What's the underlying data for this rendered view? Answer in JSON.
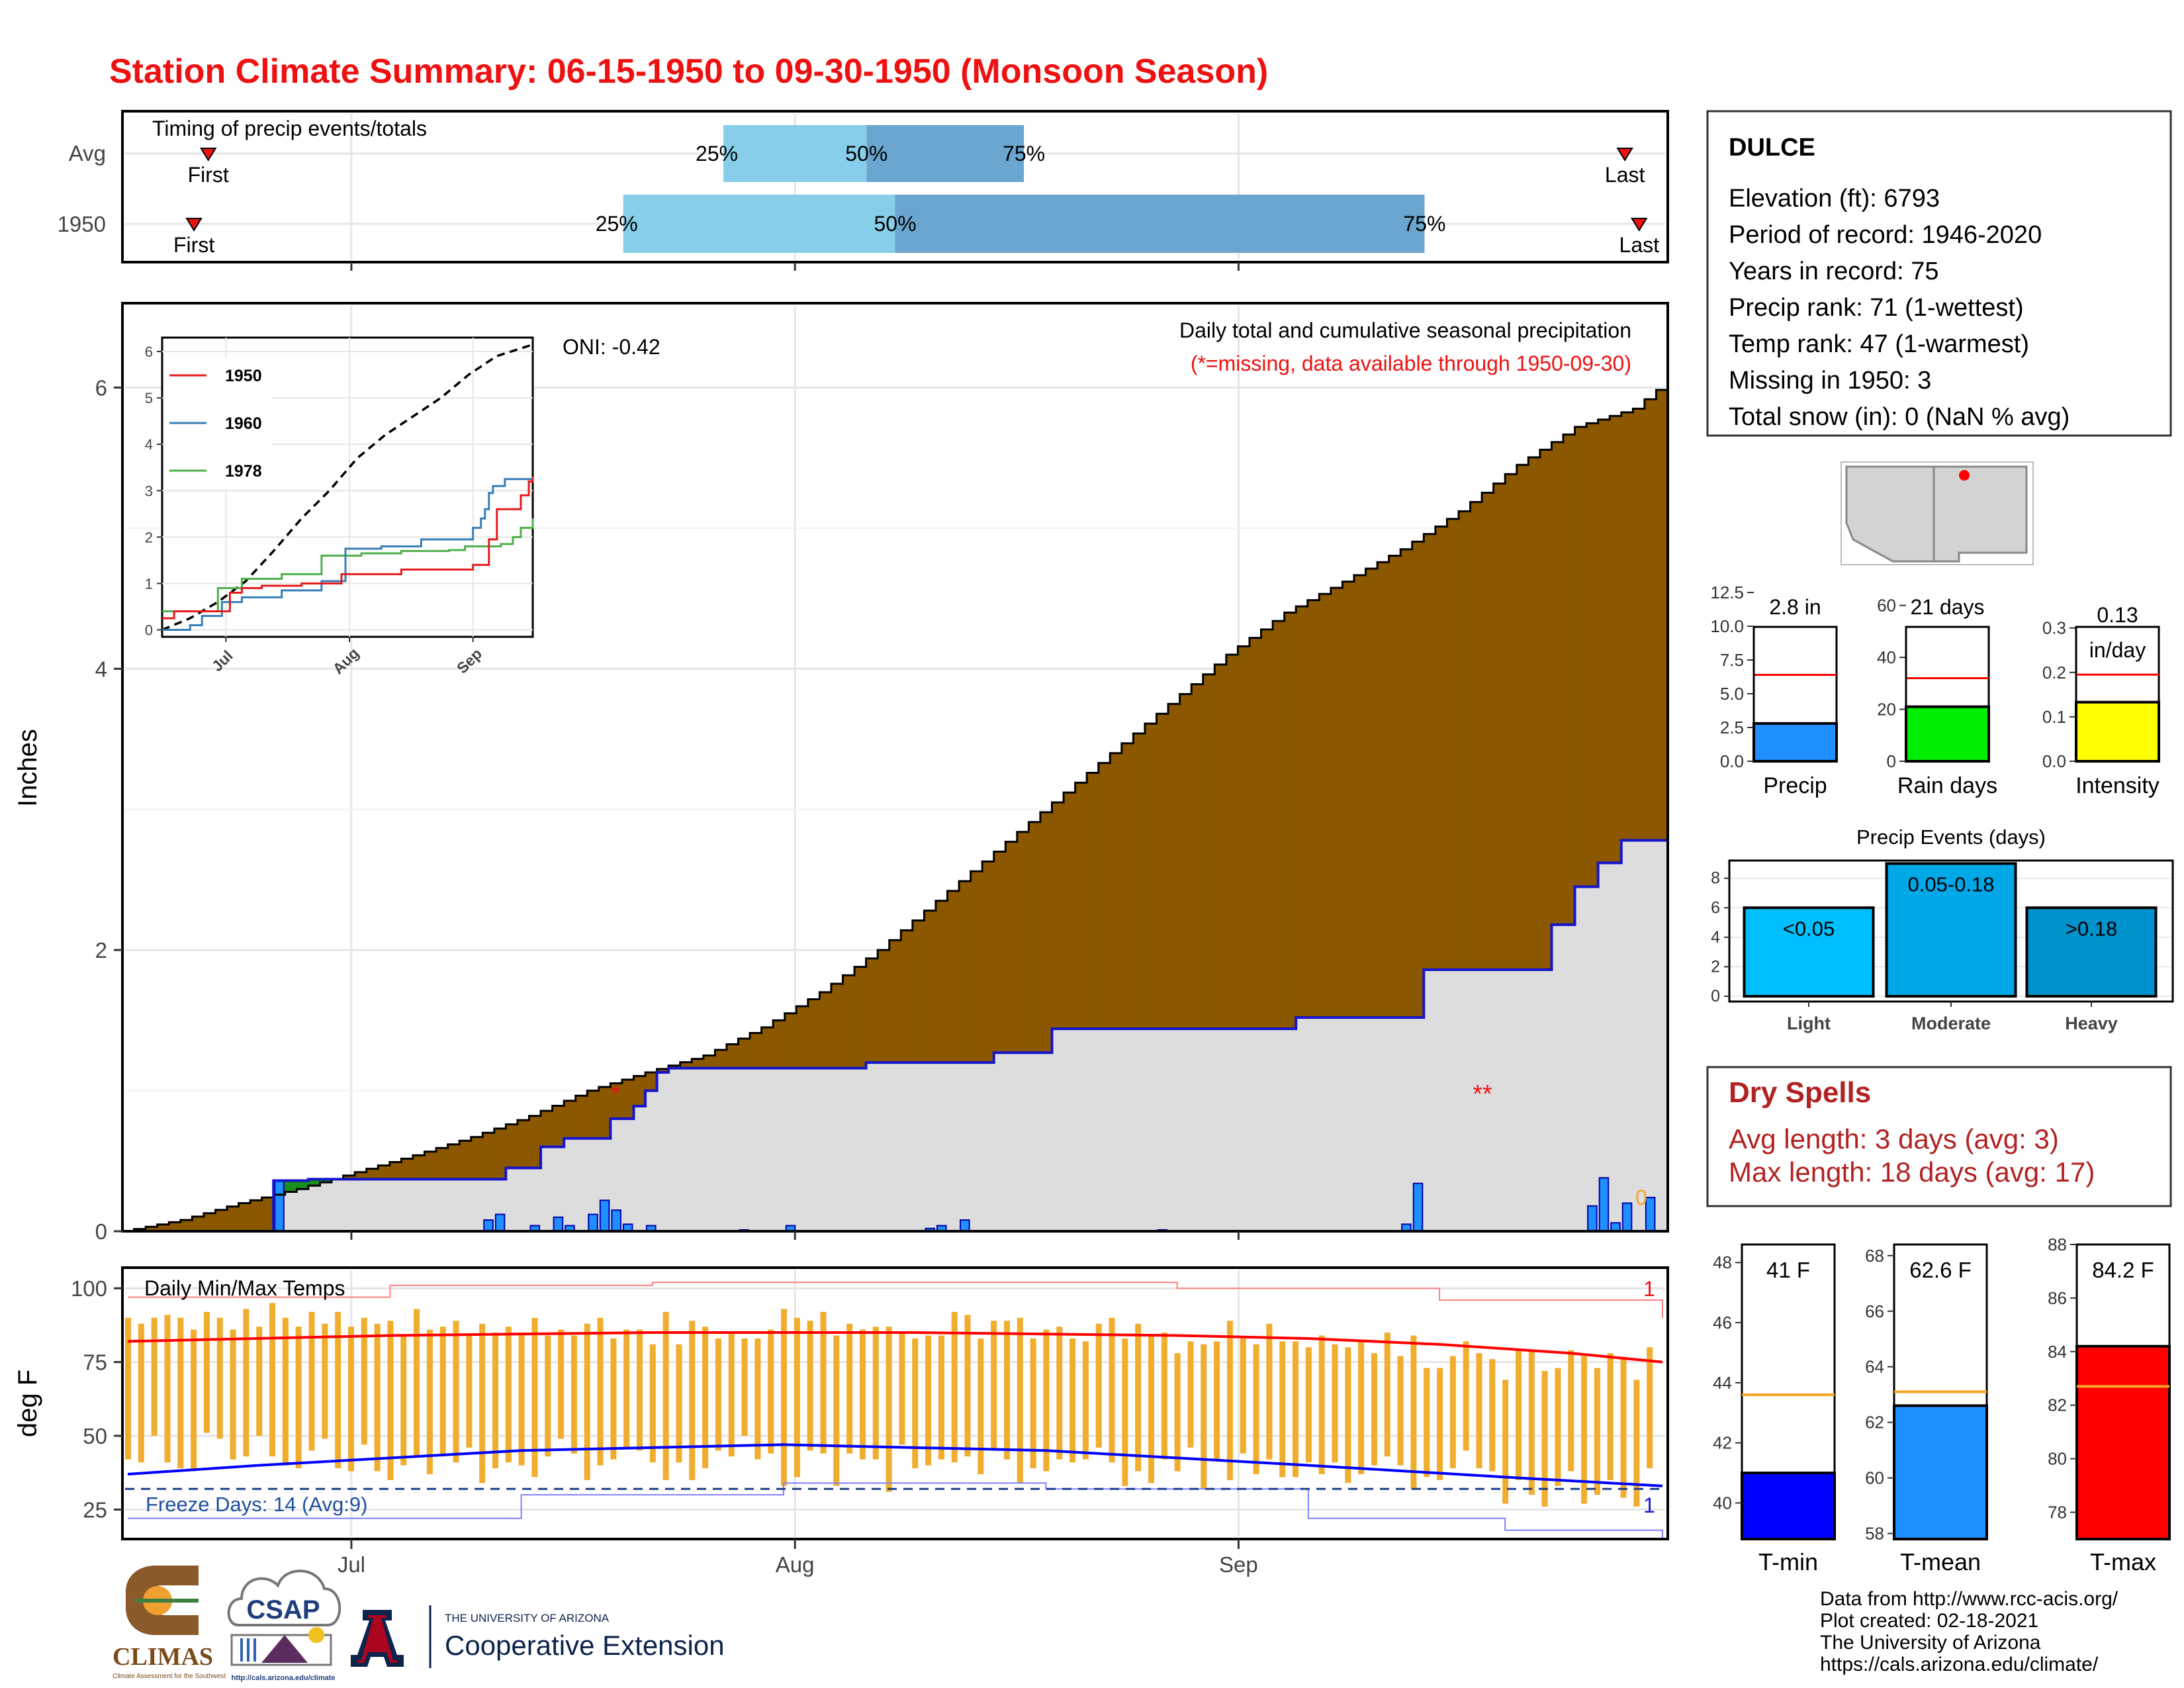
{
  "title": "Station Climate Summary: 06-15-1950 to 09-30-1950 (Monsoon Season)",
  "colors": {
    "title_red": "#ee1111",
    "brown": "#8b5800",
    "green": "#1b8f1b",
    "blue_line": "#1414cc",
    "precip_bar": "#1f8fff",
    "grey_fill": "#dddddd",
    "orange": "#f0ad2e",
    "tmax": "#ff0000",
    "tmin": "#0000ff",
    "light_blue": "#87ceeb",
    "mid_blue": "#6aa6cf",
    "box_red": "#b22222"
  },
  "timing_panel": {
    "title": "Timing of precip events/totals",
    "row_labels": [
      "Avg",
      "1950"
    ],
    "avg": {
      "first": "06-21",
      "p25": "07-27",
      "p50": "08-06",
      "p75": "08-17",
      "last": "09-28"
    },
    "yr": {
      "first": "06-20",
      "p25": "07-20",
      "p50": "08-08",
      "p75": "09-14",
      "last": "09-29"
    },
    "first_label": "First",
    "last_label": "Last",
    "p25_label": "25%",
    "p50_label": "50%",
    "p75_label": "75%"
  },
  "precip_panel": {
    "ylabel": "Inches",
    "yticks": [
      "0",
      "2",
      "4",
      "6"
    ],
    "oni": "ONI: -0.42",
    "label_line1": "Daily total and cumulative seasonal precipitation",
    "label_line2": "(*=missing, data available through 1950-09-30)",
    "missing_marks": [
      "*",
      "**"
    ],
    "zero_label": "0"
  },
  "inset": {
    "yticks": [
      "0",
      "1",
      "2",
      "3",
      "4",
      "5",
      "6"
    ],
    "xticks": [
      "Jul",
      "Aug",
      "Sep"
    ],
    "legend": [
      {
        "name": "1950",
        "color": "#e41a1c"
      },
      {
        "name": "1960",
        "color": "#377eb8"
      },
      {
        "name": "1978",
        "color": "#4daf4a"
      }
    ]
  },
  "temp_panel": {
    "ylabel": "deg F",
    "title": "Daily Min/Max Temps",
    "yticks": [
      "25",
      "50",
      "75",
      "100"
    ],
    "freeze_text": "Freeze Days: 14 (Avg:9)",
    "record_high_count": "1",
    "record_low_count": "1"
  },
  "x_axis": {
    "ticks": [
      "Jul",
      "Aug",
      "Sep"
    ]
  },
  "station_box": {
    "name": "DULCE",
    "lines": [
      "Elevation (ft): 6793",
      "Period of record: 1946-2020",
      "Years in record: 75",
      "Precip rank: 71 (1-wettest)",
      "Temp rank: 47 (1-warmest)",
      "Missing in 1950: 3",
      "Total snow (in): 0 (NaN % avg)"
    ]
  },
  "mini_bars": [
    {
      "label": "Precip",
      "value_text": "2.8 in",
      "value": 2.8,
      "avg": 6.4,
      "ymax": 12.5,
      "yticks": [
        "0.0",
        "2.5",
        "5.0",
        "7.5",
        "10.0",
        "12.5"
      ],
      "tick_values": [
        0,
        2.5,
        5,
        7.5,
        10,
        12.5
      ],
      "color": "#1f8fff"
    },
    {
      "label": "Rain days",
      "value_text": "21 days",
      "value": 21,
      "avg": 32,
      "ymax": 65,
      "yticks": [
        "0",
        "20",
        "40",
        "60"
      ],
      "tick_values": [
        0,
        20,
        40,
        60
      ],
      "color": "#00ee00"
    },
    {
      "label": "Intensity",
      "value_text": "0.13",
      "value_text2": "in/day",
      "value": 0.133,
      "avg": 0.195,
      "ymax": 0.38,
      "yticks": [
        "0.0",
        "0.1",
        "0.2",
        "0.3"
      ],
      "tick_values": [
        0,
        0.1,
        0.2,
        0.3
      ],
      "color": "#ffff00"
    }
  ],
  "events": {
    "title": "Precip Events (days)",
    "yticks": [
      "0",
      "2",
      "4",
      "6",
      "8"
    ],
    "bars": [
      {
        "category": "Light",
        "label": "<0.05",
        "value": 6,
        "color": "#00bfff"
      },
      {
        "category": "Moderate",
        "label": "0.05-0.18",
        "value": 9,
        "color": "#00a8e8"
      },
      {
        "category": "Heavy",
        "label": ">0.18",
        "value": 6,
        "color": "#0092cc"
      }
    ]
  },
  "dry_spells": {
    "title": "Dry Spells",
    "avg_line": "Avg length: 3 days (avg: 3)",
    "max_line": "Max length: 18 days (avg: 17)"
  },
  "temp_bars": [
    {
      "label": "T-min",
      "value_text": "41 F",
      "value": 41,
      "avg": 43.6,
      "ymin": 38.8,
      "ymax": 48.6,
      "yticks": [
        "40",
        "42",
        "44",
        "46",
        "48"
      ],
      "tick_values": [
        40,
        42,
        44,
        46,
        48
      ],
      "color": "#0000ff"
    },
    {
      "label": "T-mean",
      "value_text": "62.6 F",
      "value": 62.6,
      "avg": 63.1,
      "ymin": 57.8,
      "ymax": 68.4,
      "yticks": [
        "58",
        "60",
        "62",
        "64",
        "66",
        "68"
      ],
      "tick_values": [
        58,
        60,
        62,
        64,
        66,
        68
      ],
      "color": "#1e90ff"
    },
    {
      "label": "T-max",
      "value_text": "84.2 F",
      "value": 84.2,
      "avg": 82.7,
      "ymin": 77,
      "ymax": 88,
      "yticks": [
        "78",
        "80",
        "82",
        "84",
        "86",
        "88"
      ],
      "tick_values": [
        78,
        80,
        82,
        84,
        86,
        88
      ],
      "color": "#ff0000"
    }
  ],
  "footer": {
    "lines": [
      "Data from http://www.rcc-acis.org/",
      "Plot created: 02-18-2021",
      "The University of Arizona",
      "https://cals.arizona.edu/climate/"
    ],
    "climas": "CLIMAS",
    "climas_sub": "Climate Assessment for the Southwest",
    "csap": "CSAP",
    "csap_url": "http://cals.arizona.edu/climate",
    "ua_small": "THE UNIVERSITY OF ARIZONA",
    "ua_big": "Cooperative Extension"
  },
  "chart_data": {
    "type": "area",
    "start_date": "1950-06-15",
    "end_date": "1950-09-30",
    "cumulative_1950": [
      [
        0,
        0
      ],
      [
        13,
        0.36
      ],
      [
        16,
        0.37
      ],
      [
        31,
        0.37
      ],
      [
        33,
        0.45
      ],
      [
        36,
        0.6
      ],
      [
        38,
        0.66
      ],
      [
        42,
        0.8
      ],
      [
        44,
        0.89
      ],
      [
        45,
        1.0
      ],
      [
        46,
        1.13
      ],
      [
        47,
        1.16
      ],
      [
        49,
        1.16
      ],
      [
        64,
        1.2
      ],
      [
        75,
        1.27
      ],
      [
        76,
        1.27
      ],
      [
        80,
        1.44
      ],
      [
        81,
        1.44
      ],
      [
        100,
        1.44
      ],
      [
        101,
        1.52
      ],
      [
        102,
        1.52
      ],
      [
        111,
        1.52
      ],
      [
        112,
        1.86
      ],
      [
        113,
        1.86
      ],
      [
        122,
        1.86
      ],
      [
        123,
        2.18
      ],
      [
        124,
        2.18
      ],
      [
        125,
        2.45
      ],
      [
        126,
        2.45
      ],
      [
        127,
        2.62
      ],
      [
        128,
        2.62
      ],
      [
        129,
        2.78
      ],
      [
        130,
        2.78
      ],
      [
        133,
        2.8
      ]
    ],
    "cumulative_avg": [
      [
        0,
        0
      ],
      [
        5,
        0.08
      ],
      [
        10,
        0.2
      ],
      [
        15,
        0.3
      ],
      [
        20,
        0.42
      ],
      [
        25,
        0.54
      ],
      [
        30,
        0.67
      ],
      [
        35,
        0.82
      ],
      [
        40,
        1.0
      ],
      [
        45,
        1.13
      ],
      [
        50,
        1.25
      ],
      [
        55,
        1.45
      ],
      [
        60,
        1.7
      ],
      [
        65,
        2.0
      ],
      [
        70,
        2.35
      ],
      [
        75,
        2.7
      ],
      [
        80,
        3.05
      ],
      [
        85,
        3.4
      ],
      [
        90,
        3.75
      ],
      [
        95,
        4.1
      ],
      [
        100,
        4.4
      ],
      [
        105,
        4.62
      ],
      [
        110,
        4.85
      ],
      [
        115,
        5.12
      ],
      [
        120,
        5.45
      ],
      [
        125,
        5.72
      ],
      [
        130,
        5.85
      ],
      [
        133,
        6.05
      ]
    ],
    "daily_precip_1950": [
      [
        13,
        0.36
      ],
      [
        31,
        0.08
      ],
      [
        32,
        0.12
      ],
      [
        35,
        0.04
      ],
      [
        37,
        0.1
      ],
      [
        38,
        0.04
      ],
      [
        40,
        0.12
      ],
      [
        41,
        0.22
      ],
      [
        42,
        0.15
      ],
      [
        43,
        0.05
      ],
      [
        45,
        0.04
      ],
      [
        53,
        0.01
      ],
      [
        57,
        0.04
      ],
      [
        69,
        0.02
      ],
      [
        70,
        0.04
      ],
      [
        72,
        0.08
      ],
      [
        89,
        0.01
      ],
      [
        110,
        0.05
      ],
      [
        111,
        0.34
      ],
      [
        126,
        0.18
      ],
      [
        127,
        0.38
      ],
      [
        128,
        0.06
      ],
      [
        129,
        0.2
      ],
      [
        131,
        0.24
      ]
    ],
    "inset_avg_cumulative": [
      [
        0,
        0
      ],
      [
        10,
        0.25
      ],
      [
        20,
        0.6
      ],
      [
        30,
        1.05
      ],
      [
        40,
        1.7
      ],
      [
        50,
        2.4
      ],
      [
        60,
        3.0
      ],
      [
        70,
        3.7
      ],
      [
        80,
        4.2
      ],
      [
        90,
        4.6
      ],
      [
        100,
        5.0
      ],
      [
        110,
        5.5
      ],
      [
        120,
        5.9
      ],
      [
        133,
        6.15
      ]
    ],
    "inset_1950": [
      [
        0,
        0.25
      ],
      [
        3,
        0.4
      ],
      [
        10,
        0.4
      ],
      [
        17,
        0.8
      ],
      [
        20,
        0.9
      ],
      [
        25,
        0.95
      ],
      [
        35,
        1.0
      ],
      [
        45,
        1.2
      ],
      [
        60,
        1.3
      ],
      [
        78,
        1.4
      ],
      [
        82,
        1.95
      ],
      [
        84,
        2.6
      ],
      [
        88,
        2.6
      ],
      [
        90,
        2.9
      ],
      [
        92,
        3.2
      ],
      [
        93,
        3.3
      ]
    ],
    "inset_1960": [
      [
        0,
        0
      ],
      [
        7,
        0.1
      ],
      [
        10,
        0.3
      ],
      [
        15,
        0.6
      ],
      [
        20,
        0.7
      ],
      [
        30,
        0.85
      ],
      [
        40,
        1.05
      ],
      [
        46,
        1.75
      ],
      [
        55,
        1.8
      ],
      [
        65,
        1.95
      ],
      [
        78,
        2.2
      ],
      [
        80,
        2.4
      ],
      [
        81,
        2.6
      ],
      [
        82,
        2.95
      ],
      [
        83,
        3.1
      ],
      [
        86,
        3.25
      ],
      [
        93,
        3.3
      ]
    ],
    "inset_1978": [
      [
        0,
        0.4
      ],
      [
        8,
        0.4
      ],
      [
        14,
        0.9
      ],
      [
        20,
        1.1
      ],
      [
        30,
        1.2
      ],
      [
        40,
        1.6
      ],
      [
        50,
        1.65
      ],
      [
        60,
        1.7
      ],
      [
        72,
        1.72
      ],
      [
        76,
        1.8
      ],
      [
        85,
        1.85
      ],
      [
        88,
        2.0
      ],
      [
        90,
        2.2
      ],
      [
        93,
        2.4
      ]
    ],
    "temps_1950": {
      "tmax": [
        90,
        88,
        90,
        91,
        90,
        86,
        92,
        90,
        86,
        93,
        87,
        95,
        90,
        87,
        92,
        88,
        92,
        87,
        90,
        88,
        89,
        84,
        93,
        86,
        87,
        89,
        84,
        88,
        85,
        87,
        85,
        90,
        84,
        86,
        84,
        88,
        90,
        83,
        86,
        86,
        81,
        92,
        81,
        89,
        87,
        83,
        85,
        83,
        83,
        86,
        93,
        90,
        89,
        92,
        84,
        88,
        86,
        87,
        87,
        85,
        83,
        84,
        84,
        92,
        91,
        83,
        89,
        89,
        90,
        83,
        86,
        87,
        83,
        82,
        88,
        90,
        83,
        88,
        84,
        85,
        78,
        82,
        81,
        82,
        89,
        83,
        81,
        88,
        82,
        82,
        80,
        84,
        81,
        80,
        82,
        78,
        85,
        77,
        84,
        73,
        73,
        77,
        82,
        78,
        76,
        69,
        79,
        79,
        72,
        73,
        79,
        77,
        73,
        78,
        76,
        69,
        80
      ],
      "tmin": [
        42,
        41,
        50,
        41,
        39,
        38,
        51,
        49,
        42,
        43,
        50,
        43,
        40,
        39,
        45,
        49,
        39,
        38,
        47,
        38,
        35,
        40,
        43,
        37,
        43,
        41,
        46,
        34,
        39,
        41,
        40,
        36,
        43,
        49,
        44,
        35,
        40,
        42,
        46,
        45,
        41,
        35,
        41,
        35,
        39,
        45,
        43,
        50,
        42,
        44,
        33,
        36,
        45,
        44,
        33,
        44,
        42,
        42,
        31,
        47,
        39,
        40,
        42,
        41,
        43,
        37,
        45,
        42,
        34,
        39,
        38,
        42,
        41,
        42,
        46,
        41,
        33,
        38,
        34,
        42,
        38,
        46,
        32,
        42,
        35,
        44,
        37,
        42,
        36,
        36,
        41,
        37,
        41,
        34,
        37,
        40,
        43,
        40,
        32,
        36,
        35,
        39,
        45,
        39,
        38,
        27,
        35,
        30,
        26,
        33,
        38,
        27,
        30,
        35,
        29,
        26,
        39
      ],
      "avg_tmax": [
        [
          0,
          82
        ],
        [
          20,
          84
        ],
        [
          40,
          85
        ],
        [
          60,
          85
        ],
        [
          80,
          84
        ],
        [
          90,
          83
        ],
        [
          100,
          81
        ],
        [
          110,
          78
        ],
        [
          117,
          75
        ]
      ],
      "avg_tmin": [
        [
          0,
          37
        ],
        [
          10,
          40
        ],
        [
          30,
          45
        ],
        [
          50,
          47
        ],
        [
          70,
          45
        ],
        [
          90,
          40
        ],
        [
          105,
          36
        ],
        [
          117,
          33
        ]
      ],
      "record_high": [
        [
          0,
          97
        ],
        [
          20,
          101
        ],
        [
          40,
          102
        ],
        [
          60,
          102
        ],
        [
          80,
          100
        ],
        [
          100,
          96
        ],
        [
          117,
          90
        ]
      ],
      "record_low": [
        [
          0,
          22
        ],
        [
          30,
          30
        ],
        [
          50,
          34
        ],
        [
          70,
          32
        ],
        [
          90,
          22
        ],
        [
          105,
          18
        ],
        [
          117,
          15
        ]
      ],
      "freeze_line": 32
    }
  }
}
